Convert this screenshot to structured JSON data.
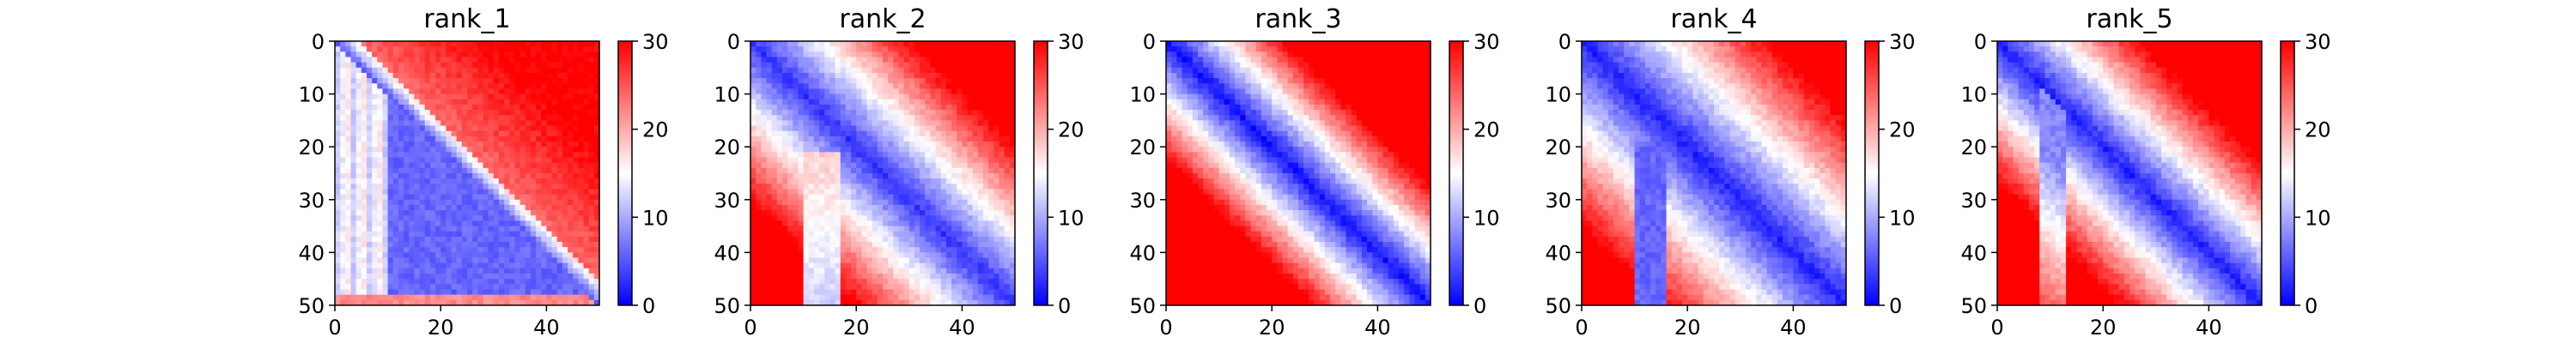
{
  "chart_data": [
    {
      "type": "heatmap",
      "title": "rank_1",
      "xlabel": "",
      "ylabel": "",
      "pattern": "blue-lower",
      "x_ticks": [
        "0",
        "20",
        "40"
      ],
      "y_ticks": [
        "0",
        "10",
        "20",
        "30",
        "40",
        "50"
      ],
      "xlim": [
        0,
        50
      ],
      "ylim": [
        50,
        0
      ],
      "grid_size": 50,
      "colorbar": {
        "vmin": 0,
        "vmax": 30,
        "ticks": [
          "0",
          "10",
          "20",
          "30"
        ],
        "colormap": "bwr"
      }
    },
    {
      "type": "heatmap",
      "title": "rank_2",
      "xlabel": "",
      "ylabel": "",
      "pattern": "band-notch",
      "x_ticks": [
        "0",
        "20",
        "40"
      ],
      "y_ticks": [
        "0",
        "10",
        "20",
        "30",
        "40",
        "50"
      ],
      "xlim": [
        0,
        50
      ],
      "ylim": [
        50,
        0
      ],
      "grid_size": 50,
      "colorbar": {
        "vmin": 0,
        "vmax": 30,
        "ticks": [
          "0",
          "10",
          "20",
          "30"
        ],
        "colormap": "bwr"
      }
    },
    {
      "type": "heatmap",
      "title": "rank_3",
      "xlabel": "",
      "ylabel": "",
      "pattern": "diagonal",
      "x_ticks": [
        "0",
        "20",
        "40"
      ],
      "y_ticks": [
        "0",
        "10",
        "20",
        "30",
        "40",
        "50"
      ],
      "xlim": [
        0,
        50
      ],
      "ylim": [
        50,
        0
      ],
      "grid_size": 50,
      "colorbar": {
        "vmin": 0,
        "vmax": 30,
        "ticks": [
          "0",
          "10",
          "20",
          "30"
        ],
        "colormap": "bwr"
      }
    },
    {
      "type": "heatmap",
      "title": "rank_4",
      "xlabel": "",
      "ylabel": "",
      "pattern": "band-wide",
      "x_ticks": [
        "0",
        "20",
        "40"
      ],
      "y_ticks": [
        "0",
        "10",
        "20",
        "30",
        "40",
        "50"
      ],
      "xlim": [
        0,
        50
      ],
      "ylim": [
        50,
        0
      ],
      "grid_size": 50,
      "colorbar": {
        "vmin": 0,
        "vmax": 30,
        "ticks": [
          "0",
          "10",
          "20",
          "30"
        ],
        "colormap": "bwr"
      }
    },
    {
      "type": "heatmap",
      "title": "rank_5",
      "xlabel": "",
      "ylabel": "",
      "pattern": "band-narrow",
      "x_ticks": [
        "0",
        "20",
        "40"
      ],
      "y_ticks": [
        "0",
        "10",
        "20",
        "30",
        "40",
        "50"
      ],
      "xlim": [
        0,
        50
      ],
      "ylim": [
        50,
        0
      ],
      "grid_size": 50,
      "colorbar": {
        "vmin": 0,
        "vmax": 30,
        "ticks": [
          "0",
          "10",
          "20",
          "30"
        ],
        "colormap": "bwr"
      }
    }
  ],
  "colors": {
    "low": "#0000ff",
    "mid": "#ffffff",
    "high": "#ff0000"
  }
}
